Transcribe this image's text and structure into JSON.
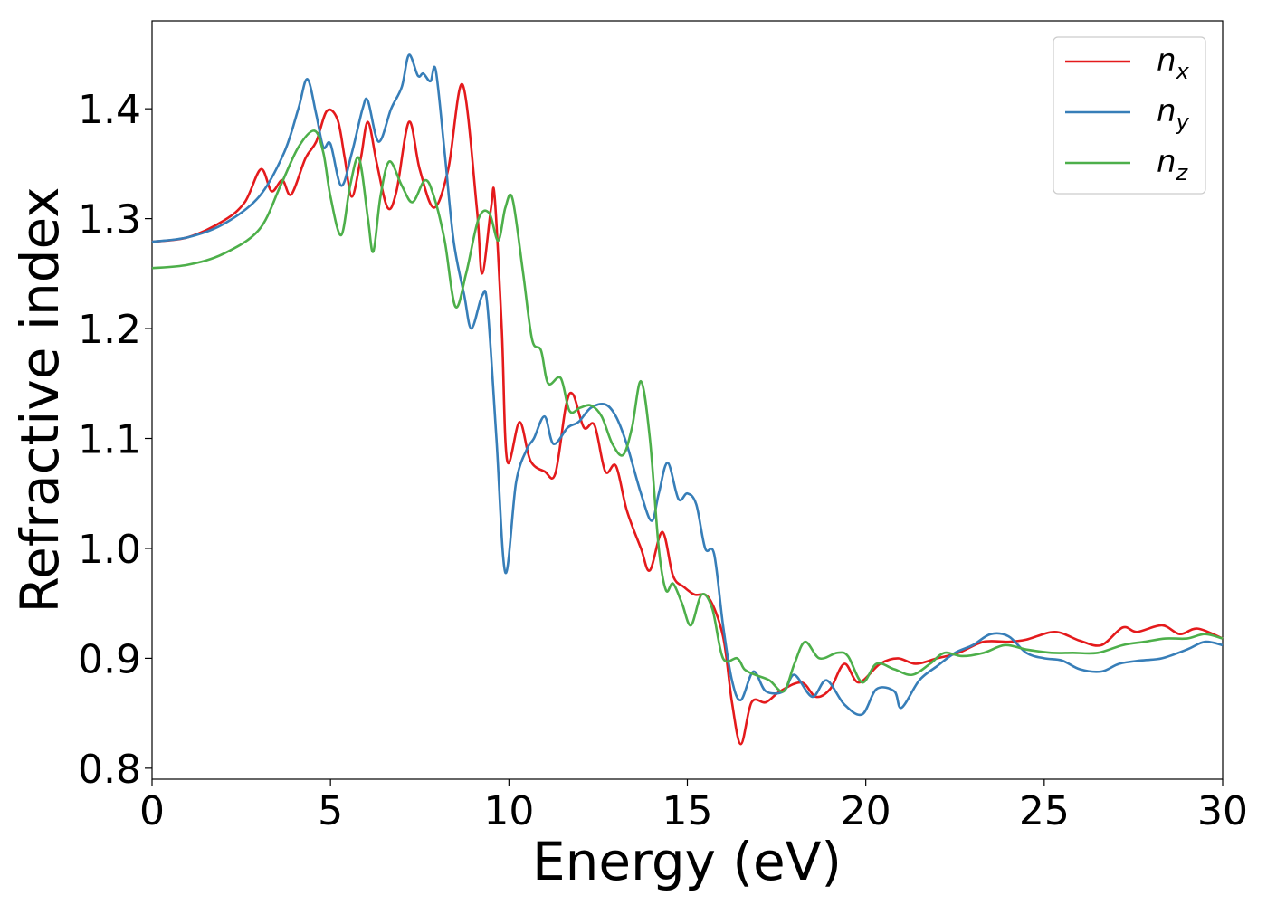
{
  "chart_data": {
    "type": "line",
    "xlabel": "Energy (eV)",
    "ylabel": "Refractive index",
    "xlim": [
      0,
      30
    ],
    "ylim": [
      0.79,
      1.48
    ],
    "xticks": [
      0,
      5,
      10,
      15,
      20,
      25,
      30
    ],
    "xtick_labels": [
      "0",
      "5",
      "10",
      "15",
      "20",
      "25",
      "30"
    ],
    "yticks": [
      0.8,
      0.9,
      1.0,
      1.1,
      1.2,
      1.3,
      1.4
    ],
    "ytick_labels": [
      "0.8",
      "0.9",
      "1.0",
      "1.1",
      "1.2",
      "1.3",
      "1.4"
    ],
    "grid": false,
    "legend_position": "top-right",
    "series": [
      {
        "name": "n",
        "subscript": "x",
        "color": "#e41a1c",
        "points": [
          [
            0,
            1.279
          ],
          [
            1,
            1.283
          ],
          [
            2,
            1.298
          ],
          [
            2.6,
            1.315
          ],
          [
            3.05,
            1.345
          ],
          [
            3.35,
            1.325
          ],
          [
            3.65,
            1.335
          ],
          [
            3.9,
            1.322
          ],
          [
            4.3,
            1.355
          ],
          [
            4.6,
            1.37
          ],
          [
            4.9,
            1.398
          ],
          [
            5.2,
            1.39
          ],
          [
            5.4,
            1.355
          ],
          [
            5.6,
            1.32
          ],
          [
            5.85,
            1.355
          ],
          [
            6.05,
            1.388
          ],
          [
            6.3,
            1.35
          ],
          [
            6.6,
            1.31
          ],
          [
            6.85,
            1.325
          ],
          [
            7.2,
            1.388
          ],
          [
            7.5,
            1.345
          ],
          [
            7.9,
            1.31
          ],
          [
            8.3,
            1.345
          ],
          [
            8.7,
            1.422
          ],
          [
            9.1,
            1.31
          ],
          [
            9.25,
            1.25
          ],
          [
            9.5,
            1.31
          ],
          [
            9.6,
            1.32
          ],
          [
            9.8,
            1.2
          ],
          [
            9.95,
            1.08
          ],
          [
            10.3,
            1.115
          ],
          [
            10.6,
            1.08
          ],
          [
            11,
            1.07
          ],
          [
            11.3,
            1.068
          ],
          [
            11.6,
            1.13
          ],
          [
            11.8,
            1.14
          ],
          [
            12.1,
            1.11
          ],
          [
            12.4,
            1.112
          ],
          [
            12.7,
            1.07
          ],
          [
            13,
            1.075
          ],
          [
            13.3,
            1.035
          ],
          [
            13.7,
            1.0
          ],
          [
            13.95,
            0.98
          ],
          [
            14.3,
            1.015
          ],
          [
            14.6,
            0.975
          ],
          [
            14.9,
            0.965
          ],
          [
            15.2,
            0.958
          ],
          [
            15.6,
            0.955
          ],
          [
            16.0,
            0.92
          ],
          [
            16.25,
            0.86
          ],
          [
            16.5,
            0.822
          ],
          [
            16.8,
            0.86
          ],
          [
            17.2,
            0.86
          ],
          [
            17.6,
            0.87
          ],
          [
            18.2,
            0.878
          ],
          [
            18.6,
            0.865
          ],
          [
            19.0,
            0.872
          ],
          [
            19.4,
            0.895
          ],
          [
            19.8,
            0.878
          ],
          [
            20.4,
            0.895
          ],
          [
            20.9,
            0.9
          ],
          [
            21.4,
            0.895
          ],
          [
            22.0,
            0.9
          ],
          [
            22.6,
            0.905
          ],
          [
            23.3,
            0.915
          ],
          [
            24.0,
            0.915
          ],
          [
            24.5,
            0.917
          ],
          [
            25.3,
            0.924
          ],
          [
            26.0,
            0.916
          ],
          [
            26.6,
            0.912
          ],
          [
            27.2,
            0.928
          ],
          [
            27.6,
            0.924
          ],
          [
            28.3,
            0.93
          ],
          [
            28.8,
            0.922
          ],
          [
            29.3,
            0.927
          ],
          [
            30,
            0.918
          ]
        ]
      },
      {
        "name": "n",
        "subscript": "y",
        "color": "#377eb8",
        "points": [
          [
            0,
            1.279
          ],
          [
            1,
            1.283
          ],
          [
            2,
            1.295
          ],
          [
            3,
            1.32
          ],
          [
            3.7,
            1.36
          ],
          [
            4.1,
            1.4
          ],
          [
            4.35,
            1.427
          ],
          [
            4.6,
            1.395
          ],
          [
            4.8,
            1.365
          ],
          [
            5.0,
            1.368
          ],
          [
            5.3,
            1.33
          ],
          [
            5.6,
            1.36
          ],
          [
            5.9,
            1.4
          ],
          [
            6.05,
            1.407
          ],
          [
            6.35,
            1.37
          ],
          [
            6.7,
            1.4
          ],
          [
            7.0,
            1.42
          ],
          [
            7.2,
            1.449
          ],
          [
            7.45,
            1.43
          ],
          [
            7.6,
            1.432
          ],
          [
            7.8,
            1.425
          ],
          [
            7.95,
            1.435
          ],
          [
            8.2,
            1.36
          ],
          [
            8.45,
            1.28
          ],
          [
            8.75,
            1.23
          ],
          [
            8.95,
            1.2
          ],
          [
            9.25,
            1.23
          ],
          [
            9.4,
            1.22
          ],
          [
            9.65,
            1.1
          ],
          [
            9.9,
            0.978
          ],
          [
            10.2,
            1.06
          ],
          [
            10.5,
            1.09
          ],
          [
            10.7,
            1.1
          ],
          [
            11.0,
            1.12
          ],
          [
            11.25,
            1.095
          ],
          [
            11.65,
            1.11
          ],
          [
            11.95,
            1.115
          ],
          [
            12.3,
            1.128
          ],
          [
            12.7,
            1.131
          ],
          [
            13.0,
            1.12
          ],
          [
            13.3,
            1.095
          ],
          [
            13.7,
            1.05
          ],
          [
            14.0,
            1.025
          ],
          [
            14.2,
            1.05
          ],
          [
            14.45,
            1.078
          ],
          [
            14.75,
            1.045
          ],
          [
            15.0,
            1.05
          ],
          [
            15.25,
            1.04
          ],
          [
            15.5,
            1.0
          ],
          [
            15.75,
            0.995
          ],
          [
            16.0,
            0.93
          ],
          [
            16.25,
            0.88
          ],
          [
            16.5,
            0.862
          ],
          [
            16.85,
            0.888
          ],
          [
            17.2,
            0.87
          ],
          [
            17.7,
            0.87
          ],
          [
            18.0,
            0.885
          ],
          [
            18.5,
            0.865
          ],
          [
            18.9,
            0.88
          ],
          [
            19.4,
            0.858
          ],
          [
            19.9,
            0.849
          ],
          [
            20.3,
            0.872
          ],
          [
            20.8,
            0.87
          ],
          [
            21.0,
            0.855
          ],
          [
            21.5,
            0.88
          ],
          [
            22.0,
            0.893
          ],
          [
            22.5,
            0.905
          ],
          [
            23.0,
            0.912
          ],
          [
            23.5,
            0.922
          ],
          [
            24.0,
            0.92
          ],
          [
            24.5,
            0.905
          ],
          [
            25.0,
            0.9
          ],
          [
            25.5,
            0.898
          ],
          [
            26.0,
            0.89
          ],
          [
            26.6,
            0.888
          ],
          [
            27.1,
            0.895
          ],
          [
            27.7,
            0.898
          ],
          [
            28.3,
            0.9
          ],
          [
            29.0,
            0.908
          ],
          [
            29.5,
            0.915
          ],
          [
            30,
            0.912
          ]
        ]
      },
      {
        "name": "n",
        "subscript": "z",
        "color": "#4daf4a",
        "points": [
          [
            0,
            1.255
          ],
          [
            1,
            1.258
          ],
          [
            2,
            1.268
          ],
          [
            3,
            1.29
          ],
          [
            3.6,
            1.33
          ],
          [
            4.1,
            1.365
          ],
          [
            4.55,
            1.38
          ],
          [
            4.8,
            1.36
          ],
          [
            5.0,
            1.32
          ],
          [
            5.3,
            1.285
          ],
          [
            5.55,
            1.33
          ],
          [
            5.8,
            1.355
          ],
          [
            6.05,
            1.3
          ],
          [
            6.2,
            1.27
          ],
          [
            6.4,
            1.32
          ],
          [
            6.65,
            1.352
          ],
          [
            7.0,
            1.33
          ],
          [
            7.3,
            1.315
          ],
          [
            7.65,
            1.335
          ],
          [
            7.9,
            1.32
          ],
          [
            8.2,
            1.28
          ],
          [
            8.5,
            1.22
          ],
          [
            8.8,
            1.25
          ],
          [
            9.15,
            1.3
          ],
          [
            9.45,
            1.305
          ],
          [
            9.7,
            1.28
          ],
          [
            9.9,
            1.31
          ],
          [
            10.1,
            1.318
          ],
          [
            10.4,
            1.25
          ],
          [
            10.65,
            1.19
          ],
          [
            10.9,
            1.18
          ],
          [
            11.1,
            1.15
          ],
          [
            11.45,
            1.155
          ],
          [
            11.7,
            1.125
          ],
          [
            12.0,
            1.128
          ],
          [
            12.3,
            1.13
          ],
          [
            12.6,
            1.12
          ],
          [
            12.9,
            1.095
          ],
          [
            13.2,
            1.085
          ],
          [
            13.45,
            1.11
          ],
          [
            13.7,
            1.152
          ],
          [
            13.95,
            1.1
          ],
          [
            14.2,
            1.0
          ],
          [
            14.4,
            0.962
          ],
          [
            14.6,
            0.968
          ],
          [
            14.85,
            0.95
          ],
          [
            15.1,
            0.93
          ],
          [
            15.4,
            0.958
          ],
          [
            15.7,
            0.945
          ],
          [
            16.0,
            0.9
          ],
          [
            16.4,
            0.9
          ],
          [
            16.6,
            0.89
          ],
          [
            16.9,
            0.885
          ],
          [
            17.3,
            0.88
          ],
          [
            17.7,
            0.87
          ],
          [
            18.0,
            0.895
          ],
          [
            18.3,
            0.915
          ],
          [
            18.7,
            0.9
          ],
          [
            19.2,
            0.905
          ],
          [
            19.5,
            0.902
          ],
          [
            19.9,
            0.878
          ],
          [
            20.3,
            0.895
          ],
          [
            20.8,
            0.89
          ],
          [
            21.3,
            0.885
          ],
          [
            21.8,
            0.895
          ],
          [
            22.2,
            0.905
          ],
          [
            22.7,
            0.902
          ],
          [
            23.3,
            0.905
          ],
          [
            23.9,
            0.912
          ],
          [
            24.5,
            0.908
          ],
          [
            25.2,
            0.905
          ],
          [
            25.8,
            0.905
          ],
          [
            26.5,
            0.905
          ],
          [
            27.2,
            0.912
          ],
          [
            27.8,
            0.915
          ],
          [
            28.4,
            0.918
          ],
          [
            29.0,
            0.918
          ],
          [
            29.5,
            0.922
          ],
          [
            30,
            0.918
          ]
        ]
      }
    ]
  }
}
